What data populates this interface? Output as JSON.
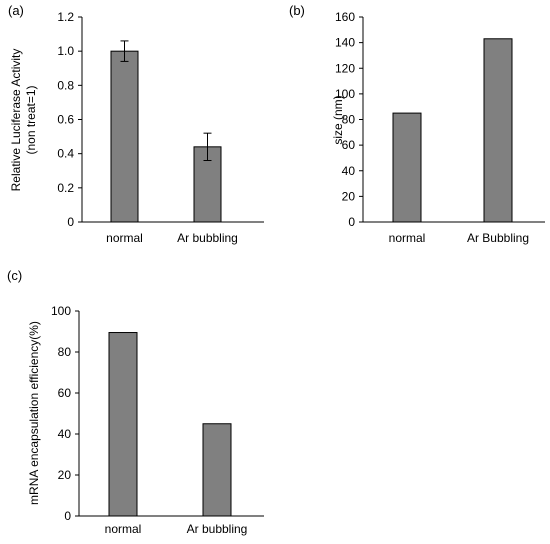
{
  "colors": {
    "bar_fill": "#808080",
    "bar_stroke": "#000000",
    "axis": "#000000"
  },
  "chart_data": [
    {
      "type": "bar",
      "panel": "(a)",
      "ylabel_lines": [
        "Relative Luciferase Activity",
        "(non treat=1)"
      ],
      "categories": [
        "normal",
        "Ar bubbling"
      ],
      "values": [
        1.0,
        0.44
      ],
      "errors": [
        0.06,
        0.08
      ],
      "ylim": [
        0,
        1.2
      ],
      "yticks": [
        "0",
        "0.2",
        "0.4",
        "0.6",
        "0.8",
        "1.0",
        "1.2"
      ],
      "grid": false
    },
    {
      "type": "bar",
      "panel": "(b)",
      "ylabel_lines": [
        "size (nm)"
      ],
      "categories": [
        "normal",
        "Ar Bubbling"
      ],
      "values": [
        85,
        143
      ],
      "ylim": [
        0,
        160
      ],
      "yticks": [
        "0",
        "20",
        "40",
        "60",
        "80",
        "100",
        "120",
        "140",
        "160"
      ],
      "grid": false
    },
    {
      "type": "bar",
      "panel": "(c)",
      "ylabel_lines": [
        "mRNA encapsulation efficiency(%)"
      ],
      "categories": [
        "normal",
        "Ar bubbling"
      ],
      "values": [
        89.5,
        45
      ],
      "ylim": [
        0,
        100
      ],
      "yticks": [
        "0",
        "20",
        "40",
        "60",
        "80",
        "100"
      ],
      "grid": false
    }
  ]
}
